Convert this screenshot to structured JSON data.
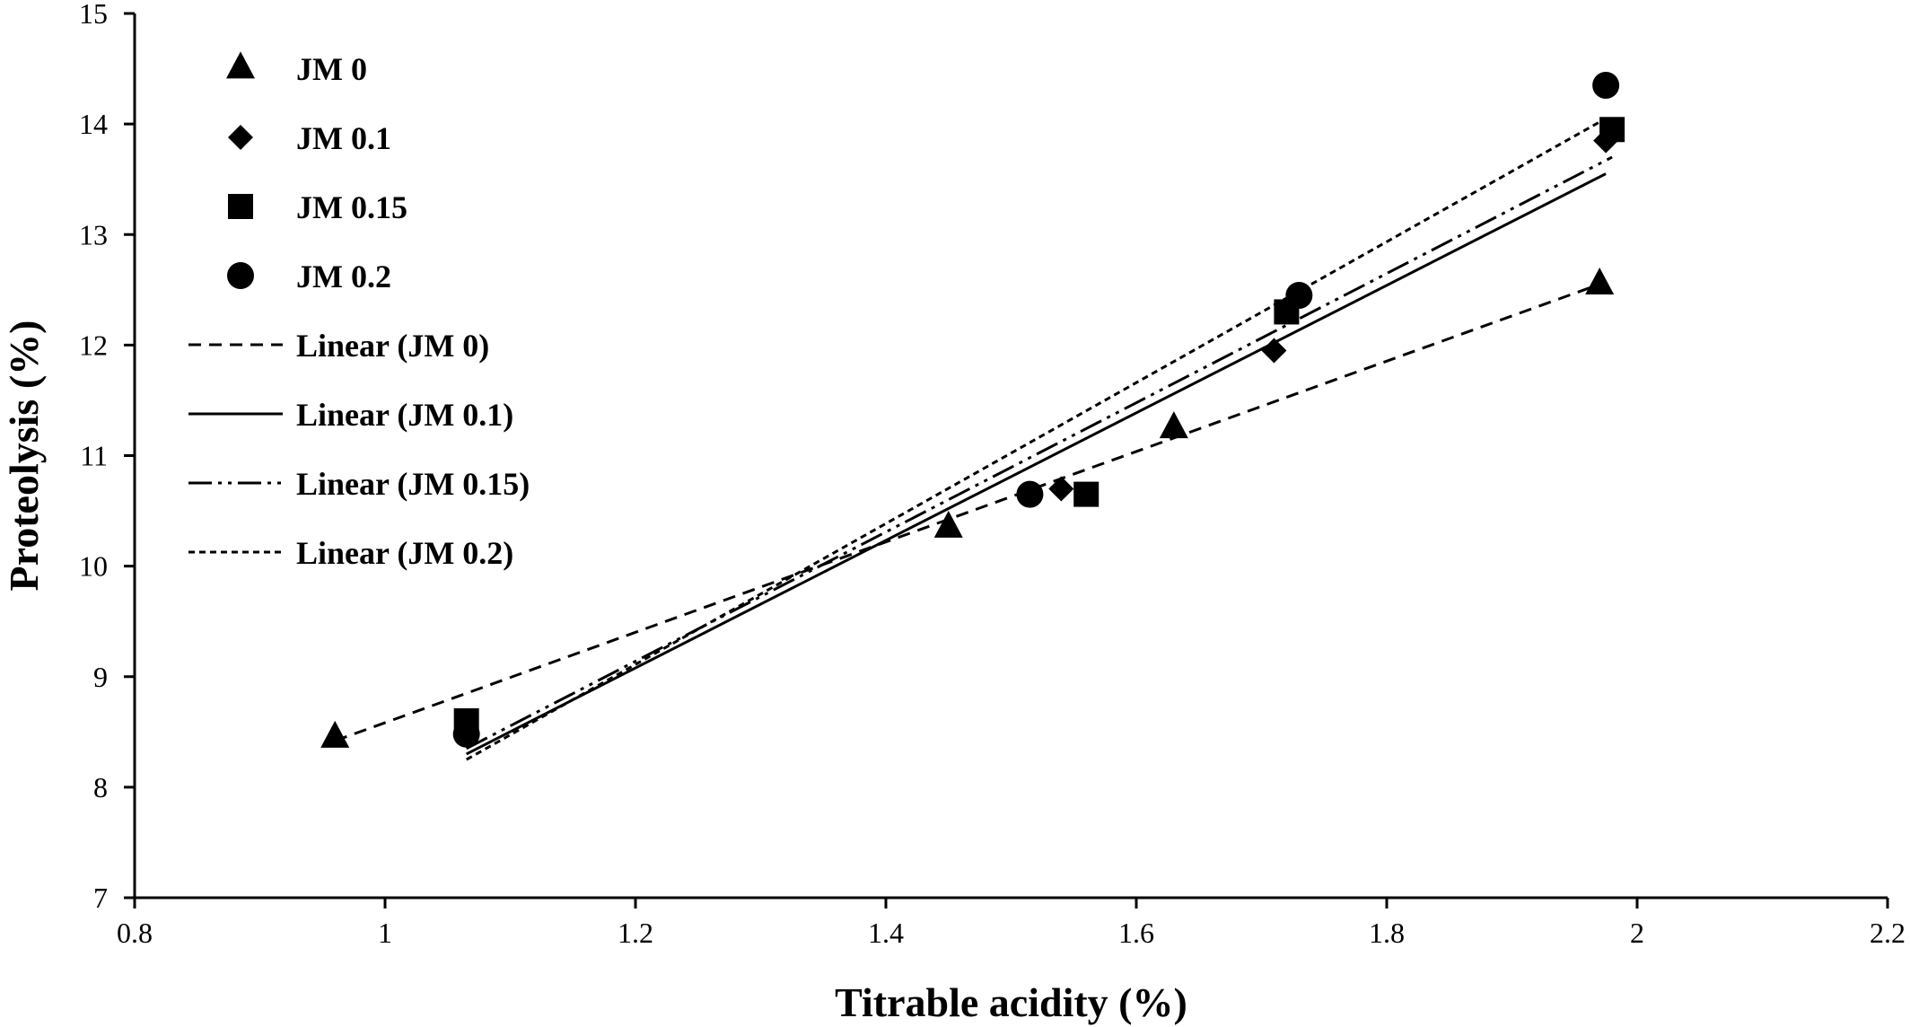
{
  "chart_data": {
    "type": "scatter",
    "xlabel": "Titrable acidity (%)",
    "ylabel": "Proteolysis (%)",
    "xlim": [
      0.8,
      2.2
    ],
    "ylim": [
      7,
      15
    ],
    "xticks": [
      "0.8",
      "1",
      "1.2",
      "1.4",
      "1.6",
      "1.8",
      "2",
      "2.2"
    ],
    "yticks": [
      "7",
      "8",
      "9",
      "10",
      "11",
      "12",
      "13",
      "14",
      "15"
    ],
    "grid": false,
    "legend_position": "top-left",
    "series": [
      {
        "name": "JM 0",
        "marker": "triangle",
        "points": [
          [
            0.96,
            8.45
          ],
          [
            1.45,
            10.35
          ],
          [
            1.63,
            11.25
          ],
          [
            1.97,
            12.55
          ]
        ],
        "trendline": {
          "name": "Linear (JM 0)",
          "style": "dashed",
          "x": [
            0.96,
            1.97
          ],
          "y": [
            8.42,
            12.55
          ]
        }
      },
      {
        "name": "JM 0.1",
        "marker": "diamond",
        "points": [
          [
            1.065,
            8.5
          ],
          [
            1.54,
            10.7
          ],
          [
            1.71,
            11.95
          ],
          [
            1.975,
            13.85
          ]
        ],
        "trendline": {
          "name": "Linear (JM 0.1)",
          "style": "solid",
          "x": [
            1.065,
            1.975
          ],
          "y": [
            8.3,
            13.55
          ]
        }
      },
      {
        "name": "JM 0.15",
        "marker": "square",
        "points": [
          [
            1.065,
            8.6
          ],
          [
            1.56,
            10.65
          ],
          [
            1.72,
            12.3
          ],
          [
            1.98,
            13.95
          ]
        ],
        "trendline": {
          "name": "Linear (JM 0.15)",
          "style": "dashdotdot",
          "x": [
            1.065,
            1.98
          ],
          "y": [
            8.35,
            13.7
          ]
        }
      },
      {
        "name": "JM 0.2",
        "marker": "circle",
        "points": [
          [
            1.065,
            8.48
          ],
          [
            1.515,
            10.65
          ],
          [
            1.73,
            12.45
          ],
          [
            1.975,
            14.35
          ]
        ],
        "trendline": {
          "name": "Linear (JM 0.2)",
          "style": "shortdash",
          "x": [
            1.065,
            1.975
          ],
          "y": [
            8.25,
            14.05
          ]
        }
      }
    ]
  }
}
